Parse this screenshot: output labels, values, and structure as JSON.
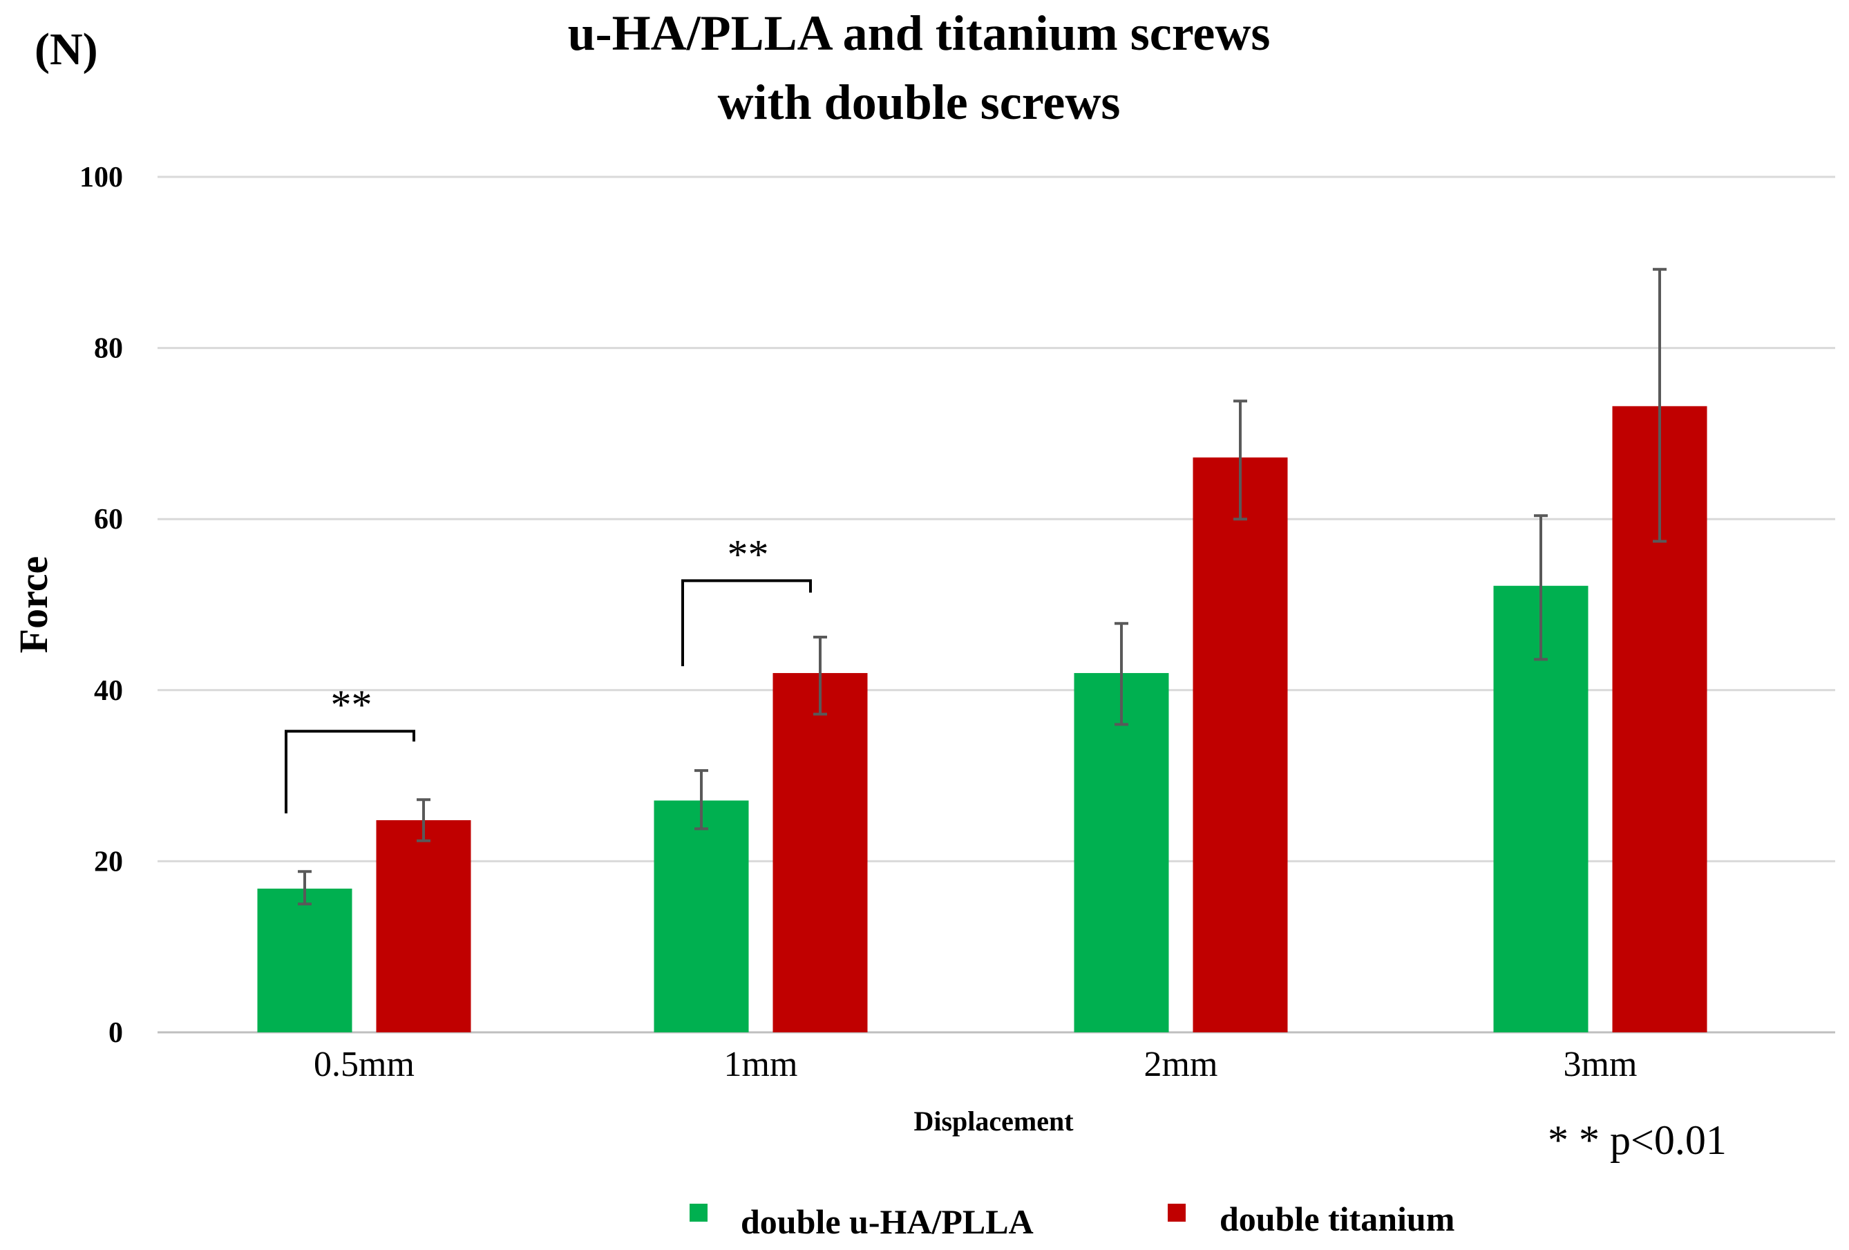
{
  "chart_data": {
    "type": "bar",
    "title_lines": [
      "u-HA/PLLA and titanium screws",
      "with double screws"
    ],
    "unit_label": "(N)",
    "ylabel": "Force",
    "xlabel": "Displacement",
    "ylim": [
      0,
      100
    ],
    "yticks": [
      0,
      20,
      40,
      60,
      80,
      100
    ],
    "categories": [
      "0.5mm",
      "1mm",
      "2mm",
      "3mm"
    ],
    "series": [
      {
        "name": "double u-HA/PLLA",
        "color": "#00b050",
        "values": [
          16.8,
          27.1,
          42.0,
          52.2
        ],
        "err_high": [
          18.8,
          30.6,
          47.8,
          60.4
        ],
        "err_low": [
          15.0,
          23.8,
          36.0,
          43.6
        ]
      },
      {
        "name": "double titanium",
        "color": "#c00000",
        "values": [
          24.8,
          42.0,
          67.2,
          73.2
        ],
        "err_high": [
          27.2,
          46.2,
          73.8,
          89.2
        ],
        "err_low": [
          22.4,
          37.2,
          60.0,
          57.4
        ]
      }
    ],
    "significance": [
      {
        "category_index": 0,
        "label": "**",
        "bracket_value": 35.2,
        "left_value": 25.6,
        "right_value": 34.0
      },
      {
        "category_index": 1,
        "label": "**",
        "bracket_value": 52.8,
        "left_value": 42.8,
        "right_value": 51.4
      }
    ],
    "note": "* * p<0.01",
    "legend_position": "bottom",
    "grid": true
  }
}
